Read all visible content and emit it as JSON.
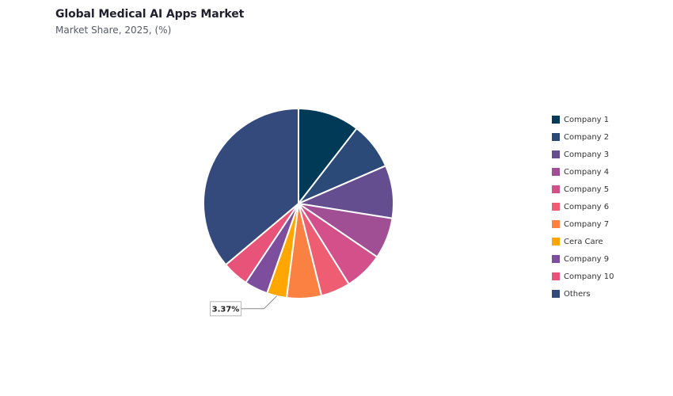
{
  "header": {
    "title": "Global Medical AI Apps Market",
    "subtitle": "Market Share, 2025, (%)"
  },
  "chart_data": {
    "type": "pie",
    "title": "Global Medical AI Apps Market",
    "subtitle": "Market Share, 2025, (%)",
    "start_angle_deg": 0,
    "direction": "clockwise",
    "legend_position": "right",
    "slices": [
      {
        "label": "Company 1",
        "value": 10.5,
        "color": "#003a57"
      },
      {
        "label": "Company 2",
        "value": 8.0,
        "color": "#2c4a78"
      },
      {
        "label": "Company 3",
        "value": 9.0,
        "color": "#654e8f"
      },
      {
        "label": "Company 4",
        "value": 7.0,
        "color": "#a04f94"
      },
      {
        "label": "Company 5",
        "value": 6.6,
        "color": "#d3508a"
      },
      {
        "label": "Company 6",
        "value": 5.0,
        "color": "#ef5d72"
      },
      {
        "label": "Company 7",
        "value": 5.9,
        "color": "#fb8143"
      },
      {
        "label": "Cera Care",
        "value": 3.37,
        "color": "#ffa600"
      },
      {
        "label": "Company 9",
        "value": 4.0,
        "color": "#7e4e9e"
      },
      {
        "label": "Company 10",
        "value": 4.5,
        "color": "#e8537a"
      },
      {
        "label": "Others",
        "value": 36.13,
        "color": "#344a7c"
      }
    ],
    "data_labels": [
      {
        "slice": "Cera Care",
        "text": "3.37%"
      }
    ]
  }
}
